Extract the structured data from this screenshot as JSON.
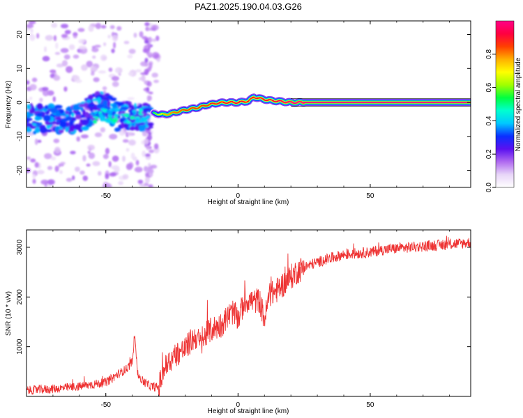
{
  "title": "PAZ1.2025.190.04.03.G26",
  "chart_data": [
    {
      "type": "heatmap",
      "xlabel": "Height of straight line (km)",
      "ylabel": "Frequency (Hz)",
      "xlim": [
        -80,
        88
      ],
      "ylim": [
        -25,
        24
      ],
      "xticks": [
        -50,
        0,
        50
      ],
      "yticks": [
        -20,
        -10,
        0,
        10,
        20
      ],
      "grid": false,
      "colorbar": {
        "label": "Normalized spectral amplitude",
        "range": [
          0,
          1
        ],
        "ticks": [
          "0.0",
          "0.2",
          "0.4",
          "0.6",
          "0.8"
        ],
        "colors": [
          "#ffffff",
          "#e8d5f8",
          "#b06af0",
          "#5a10f0",
          "#0a30ff",
          "#00c8ff",
          "#00ffd0",
          "#00ff40",
          "#a0ff00",
          "#ffff00",
          "#ffb000",
          "#ff4000",
          "#ff0040",
          "#ff0088"
        ]
      },
      "ridge": {
        "x": [
          -32,
          -28,
          -25,
          -20,
          -15,
          -12,
          -8,
          -5,
          0,
          4,
          6,
          8,
          12,
          16,
          20,
          30,
          50,
          70,
          88
        ],
        "y": [
          -3.2,
          -3.6,
          -3.2,
          -2.2,
          -1.5,
          -0.8,
          -0.2,
          0.0,
          0.0,
          0.4,
          1.6,
          1.2,
          0.6,
          0.3,
          0.0,
          0.0,
          0.0,
          0.0,
          0.0
        ],
        "amplitude": [
          0.55,
          0.75,
          0.8,
          0.85,
          0.85,
          0.85,
          0.9,
          0.9,
          0.92,
          0.9,
          0.9,
          0.9,
          0.92,
          0.95,
          1.0,
          1.0,
          1.0,
          1.0,
          1.0
        ]
      }
    },
    {
      "type": "line",
      "xlabel": "Height of straight line (km)",
      "ylabel": "SNR (10 * v/v)",
      "xlim": [
        -80,
        88
      ],
      "ylim": [
        0,
        3350
      ],
      "xticks": [
        -50,
        0,
        50
      ],
      "yticks": [
        1000,
        2000,
        3000
      ],
      "grid": false,
      "series": [
        {
          "color": "#ee3333",
          "x": [
            -80,
            -70,
            -60,
            -50,
            -45,
            -42,
            -40,
            -39,
            -38,
            -36,
            -33,
            -30,
            -28,
            -26,
            -24,
            -22,
            -20,
            -18,
            -16,
            -14,
            -12,
            -10,
            -8,
            -6,
            -4,
            -2,
            0,
            2,
            4,
            6,
            8,
            10,
            12,
            14,
            16,
            18,
            20,
            22,
            25,
            30,
            35,
            40,
            45,
            50,
            55,
            60,
            65,
            70,
            75,
            80,
            85,
            88
          ],
          "y": [
            120,
            150,
            200,
            280,
            460,
            560,
            700,
            1300,
            450,
            300,
            200,
            180,
            550,
            700,
            820,
            900,
            950,
            1100,
            1200,
            1050,
            1250,
            1350,
            1400,
            1450,
            1600,
            1700,
            1550,
            1850,
            1950,
            1900,
            1950,
            1550,
            2050,
            2100,
            2200,
            2300,
            2400,
            2500,
            2600,
            2700,
            2780,
            2850,
            2880,
            2900,
            2950,
            2980,
            3000,
            3020,
            3040,
            3060,
            3080,
            3100
          ]
        }
      ]
    }
  ]
}
